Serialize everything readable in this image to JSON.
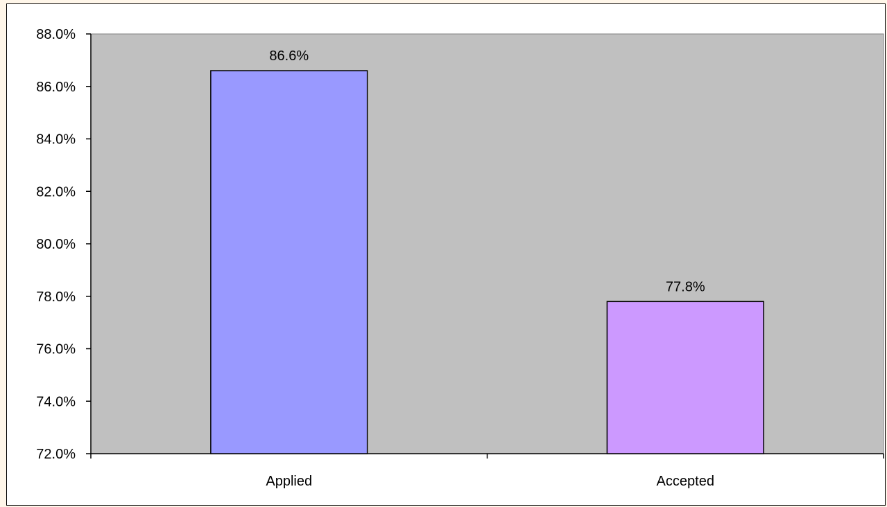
{
  "chart_data": {
    "type": "bar",
    "categories": [
      "Applied",
      "Accepted"
    ],
    "values": [
      86.6,
      77.8
    ],
    "data_labels": [
      "86.6%",
      "77.8%"
    ],
    "ylim": [
      72.0,
      88.0
    ],
    "y_ticks": [
      72.0,
      74.0,
      76.0,
      78.0,
      80.0,
      82.0,
      84.0,
      86.0,
      88.0
    ],
    "y_tick_labels": [
      "72.0%",
      "74.0%",
      "76.0%",
      "78.0%",
      "80.0%",
      "82.0%",
      "84.0%",
      "86.0%",
      "88.0%"
    ],
    "grid": false,
    "legend": "none",
    "colors": {
      "plot_background": "#c0c0c0",
      "bars": [
        "#9999ff",
        "#cc99ff"
      ],
      "page_background": "#fff6e9"
    }
  }
}
